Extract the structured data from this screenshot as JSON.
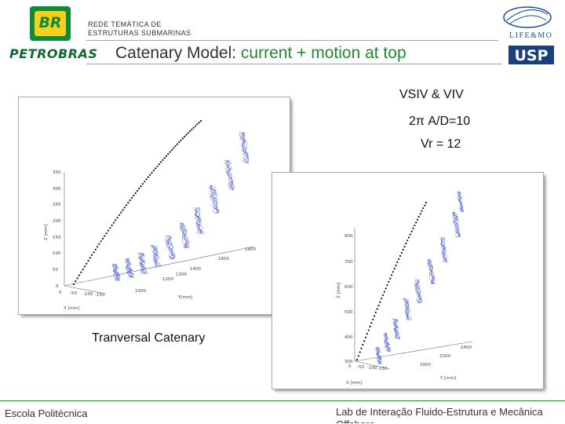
{
  "header": {
    "logo_text": "BR",
    "brand": "PETROBRAS",
    "network_line1": "REDE TEMÁTICA DE",
    "network_line2": "ESTRUTURAS SUBMARINAS",
    "title_part1": "Catenary Model: ",
    "title_part2": "current + motion at top",
    "lab_logo_text": "LIFE&MO",
    "usp_logo_text": "USP",
    "accent_color": "#1f8b2f"
  },
  "annotations": {
    "line1": "VSIV & VIV",
    "line2": "2π A/D=10",
    "line3": "Vr = 12"
  },
  "plot1": {
    "z_ticks": [
      "350",
      "300",
      "250",
      "200",
      "150",
      "100",
      "50",
      "0"
    ],
    "z_label": "Z [mm]",
    "y_ticks": [
      "1000",
      "1200",
      "1300",
      "1400",
      "1600",
      "1800"
    ],
    "y_label": "Y[mm]",
    "x_ticks": [
      "0",
      "-50",
      "-100",
      "-150"
    ],
    "x_label": "X [mm]"
  },
  "plot2": {
    "z_ticks": [
      "800",
      "700",
      "600",
      "500",
      "400",
      "300"
    ],
    "z_label": "Z [mm]",
    "y_ticks": [
      "2000",
      "2300",
      "2400"
    ],
    "y_label": "Y [mm]",
    "x_ticks": [
      "0",
      "-50",
      "-100",
      "-150"
    ],
    "x_label": "X [mm]"
  },
  "caption": "Tranversal Catenary",
  "footer": {
    "left": "Escola Politécnica",
    "right": "Lab de Interação Fluido-Estrutura e Mecânica Offshore"
  }
}
